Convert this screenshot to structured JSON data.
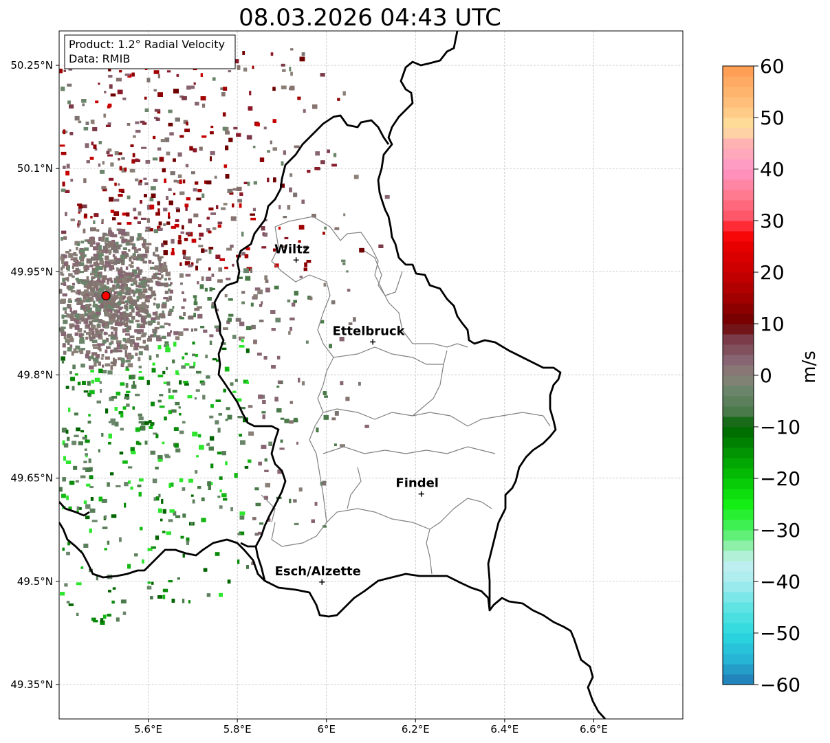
{
  "title": "08.03.2026 04:43 UTC",
  "info_box": {
    "product": "Product: 1.2° Radial Velocity",
    "data_source": "Data: RMIB"
  },
  "map": {
    "lon_ticks": [
      {
        "value": 5.6,
        "label": "5.6°E"
      },
      {
        "value": 5.8,
        "label": "5.8°E"
      },
      {
        "value": 6.0,
        "label": "6°E"
      },
      {
        "value": 6.2,
        "label": "6.2°E"
      },
      {
        "value": 6.4,
        "label": "6.4°E"
      },
      {
        "value": 6.6,
        "label": "6.6°E"
      }
    ],
    "lat_ticks": [
      {
        "value": 50.25,
        "label": "50.25°N"
      },
      {
        "value": 50.1,
        "label": "50.1°N"
      },
      {
        "value": 49.95,
        "label": "49.95°N"
      },
      {
        "value": 49.8,
        "label": "49.8°N"
      },
      {
        "value": 49.65,
        "label": "49.65°N"
      },
      {
        "value": 49.5,
        "label": "49.5°N"
      },
      {
        "value": 49.35,
        "label": "49.35°N"
      }
    ],
    "lon_range": [
      5.4,
      6.8
    ],
    "lat_range": [
      49.3,
      50.3
    ],
    "radar_site": {
      "lon": 5.505,
      "lat": 49.915,
      "color": "#ff0000"
    },
    "cities": [
      {
        "name": "Wiltz",
        "lon": 5.932,
        "lat": 49.967
      },
      {
        "name": "Ettelbruck",
        "lon": 6.104,
        "lat": 49.848
      },
      {
        "name": "Findel",
        "lon": 6.213,
        "lat": 49.627
      },
      {
        "name": "Esch/Alzette",
        "lon": 5.99,
        "lat": 49.499
      }
    ],
    "border_color": "#000000",
    "canton_color": "#808080",
    "grid": true
  },
  "colorbar": {
    "label": "m/s",
    "min": -60,
    "max": 60,
    "ticks": [
      {
        "value": 60,
        "label": "60"
      },
      {
        "value": 50,
        "label": "50"
      },
      {
        "value": 40,
        "label": "40"
      },
      {
        "value": 30,
        "label": "30"
      },
      {
        "value": 20,
        "label": "20"
      },
      {
        "value": 10,
        "label": "10"
      },
      {
        "value": 0,
        "label": "0"
      },
      {
        "value": -10,
        "label": "−10"
      },
      {
        "value": -20,
        "label": "−20"
      },
      {
        "value": -30,
        "label": "−30"
      },
      {
        "value": -40,
        "label": "−40"
      },
      {
        "value": -50,
        "label": "−50"
      },
      {
        "value": -60,
        "label": "−60"
      }
    ],
    "stops": [
      {
        "v": -60,
        "color": "#1f78b4"
      },
      {
        "v": -55,
        "color": "#27b5d6"
      },
      {
        "v": -50,
        "color": "#2ad9de"
      },
      {
        "v": -45,
        "color": "#5fe3e3"
      },
      {
        "v": -40,
        "color": "#a8ecef"
      },
      {
        "v": -36,
        "color": "#c4f0f0"
      },
      {
        "v": -33,
        "color": "#8ef0a8"
      },
      {
        "v": -30,
        "color": "#49f060"
      },
      {
        "v": -25,
        "color": "#14ee14"
      },
      {
        "v": -20,
        "color": "#04c404"
      },
      {
        "v": -15,
        "color": "#029402"
      },
      {
        "v": -10,
        "color": "#006400"
      },
      {
        "v": -7,
        "color": "#4a7a4a"
      },
      {
        "v": -3,
        "color": "#6b856b"
      },
      {
        "v": 0,
        "color": "#8a8078"
      },
      {
        "v": 3,
        "color": "#876572"
      },
      {
        "v": 7,
        "color": "#7b3b48"
      },
      {
        "v": 10,
        "color": "#6e0000"
      },
      {
        "v": 15,
        "color": "#a00000"
      },
      {
        "v": 20,
        "color": "#c80000"
      },
      {
        "v": 25,
        "color": "#e60000"
      },
      {
        "v": 28,
        "color": "#ff0a0a"
      },
      {
        "v": 30,
        "color": "#ff4e61"
      },
      {
        "v": 35,
        "color": "#ff7a8e"
      },
      {
        "v": 40,
        "color": "#ff96c8"
      },
      {
        "v": 45,
        "color": "#ffb2b2"
      },
      {
        "v": 48,
        "color": "#ffe2a0"
      },
      {
        "v": 52,
        "color": "#ffc480"
      },
      {
        "v": 60,
        "color": "#ff9a50"
      }
    ]
  }
}
